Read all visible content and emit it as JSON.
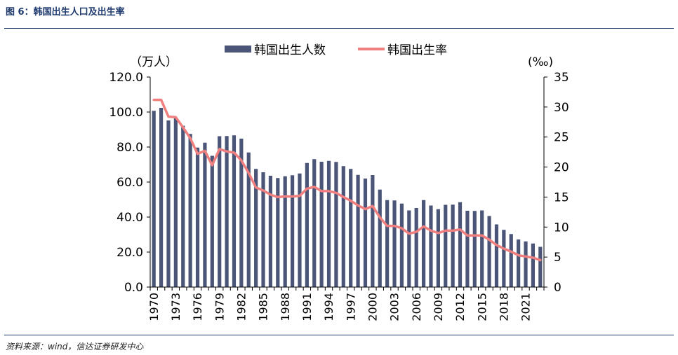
{
  "figure_title": "图 6：韩国出生人口及出生率",
  "source_note": "资料来源：wind，信达证券研发中心",
  "colors": {
    "bar": "#4a5578",
    "line": "#f08080",
    "rule": "#1f3a6e"
  },
  "chart_data": {
    "type": "bar",
    "title": "",
    "y_left_unit": "（万人）",
    "y_right_unit": "(‰)",
    "ylim_left": [
      0,
      120
    ],
    "ylim_right": [
      0,
      35
    ],
    "y_left_ticks": [
      "0.0",
      "20.0",
      "40.0",
      "60.0",
      "80.0",
      "100.0",
      "120.0"
    ],
    "y_right_ticks": [
      "0",
      "5",
      "10",
      "15",
      "20",
      "25",
      "30",
      "35"
    ],
    "x_tick_labels": [
      "1970",
      "1973",
      "1976",
      "1979",
      "1982",
      "1985",
      "1988",
      "1991",
      "1994",
      "1997",
      "2000",
      "2003",
      "2006",
      "2009",
      "2012",
      "2015",
      "2018",
      "2021"
    ],
    "legend_position": "top-center",
    "categories": [
      "1970",
      "1971",
      "1972",
      "1973",
      "1974",
      "1975",
      "1976",
      "1977",
      "1978",
      "1979",
      "1980",
      "1981",
      "1982",
      "1983",
      "1984",
      "1985",
      "1986",
      "1987",
      "1988",
      "1989",
      "1990",
      "1991",
      "1992",
      "1993",
      "1994",
      "1995",
      "1996",
      "1997",
      "1998",
      "1999",
      "2000",
      "2001",
      "2002",
      "2003",
      "2004",
      "2005",
      "2006",
      "2007",
      "2008",
      "2009",
      "2010",
      "2011",
      "2012",
      "2013",
      "2014",
      "2015",
      "2016",
      "2017",
      "2018",
      "2019",
      "2020",
      "2021",
      "2022",
      "2023"
    ],
    "series": [
      {
        "name": "韩国出生人数",
        "type": "bar",
        "axis": "left",
        "values": [
          100.7,
          102.4,
          95.2,
          96.7,
          92.2,
          87.5,
          79.7,
          82.5,
          75.0,
          86.2,
          86.3,
          86.7,
          84.8,
          76.9,
          67.5,
          65.6,
          63.6,
          62.3,
          63.3,
          63.9,
          64.9,
          70.9,
          73.1,
          71.6,
          72.1,
          71.5,
          69.1,
          67.5,
          64.1,
          62.0,
          64.0,
          55.7,
          49.7,
          49.5,
          47.7,
          43.8,
          45.2,
          49.7,
          46.6,
          44.5,
          47.0,
          47.1,
          48.5,
          43.6,
          43.5,
          43.8,
          40.6,
          35.8,
          32.7,
          30.3,
          27.2,
          26.1,
          24.9,
          23.0
        ]
      },
      {
        "name": "韩国出生率",
        "type": "line",
        "axis": "right",
        "values": [
          31.2,
          31.2,
          28.4,
          28.3,
          26.6,
          24.8,
          22.2,
          22.7,
          20.3,
          23.0,
          22.6,
          22.4,
          21.1,
          19.0,
          16.6,
          16.1,
          15.4,
          15.0,
          15.1,
          15.1,
          15.2,
          16.4,
          16.7,
          16.0,
          16.0,
          15.7,
          15.0,
          14.4,
          13.6,
          13.0,
          13.5,
          11.6,
          10.2,
          10.2,
          9.8,
          8.9,
          9.2,
          10.1,
          9.4,
          9.0,
          9.4,
          9.4,
          9.6,
          8.6,
          8.6,
          8.6,
          7.9,
          7.0,
          6.4,
          5.9,
          5.3,
          5.1,
          4.9,
          4.5
        ]
      }
    ]
  }
}
